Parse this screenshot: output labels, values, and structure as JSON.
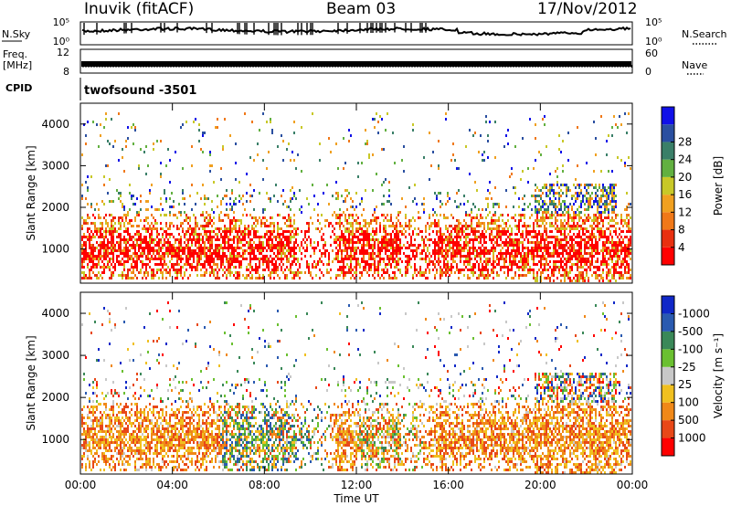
{
  "header": {
    "station": "Inuvik (fitACF)",
    "beam": "Beam 03",
    "date": "17/Nov/2012"
  },
  "chart_data": [
    {
      "type": "line",
      "name": "noise-panel",
      "left_label": "N.Sky",
      "right_label": "N.Search",
      "left_ticks": [
        "10^5",
        "10^0"
      ],
      "right_ticks": [
        "10^5",
        "10^0"
      ]
    },
    {
      "type": "line",
      "name": "freq-panel",
      "left_label_lines": [
        "Freq.",
        "[MHz]"
      ],
      "right_label": "Nave",
      "left_ticks": [
        "12",
        "8"
      ],
      "right_ticks": [
        "60",
        "0"
      ]
    },
    {
      "type": "table",
      "name": "cpid-panel",
      "label": "CPID",
      "value": "twofsound  -3501"
    },
    {
      "type": "heatmap",
      "name": "power-panel",
      "ylabel": "Slant Range [km]",
      "yticks": [
        1000,
        2000,
        3000,
        4000
      ],
      "ylim": [
        180,
        4500
      ],
      "colorbar": {
        "label": "Power [dB]",
        "ticks": [
          "4",
          "8",
          "12",
          "16",
          "20",
          "24",
          "28"
        ],
        "colors": [
          "#1010e8",
          "#2a4fa0",
          "#3a7f68",
          "#62b040",
          "#c8c828",
          "#f0a020",
          "#f07818",
          "#e83010",
          "#ff0000"
        ]
      }
    },
    {
      "type": "heatmap",
      "name": "velocity-panel",
      "ylabel": "Slant Range [km]",
      "yticks": [
        1000,
        2000,
        3000,
        4000
      ],
      "ylim": [
        180,
        4500
      ],
      "colorbar": {
        "label": "Velocity [m s⁻¹]",
        "ticks": [
          "1000",
          "500",
          "100",
          "25",
          "-25",
          "-100",
          "-500",
          "-1000"
        ],
        "colors": [
          "#1028c8",
          "#2a5ab0",
          "#3a8858",
          "#6ac030",
          "#c8c8c8",
          "#f0c020",
          "#f08818",
          "#e84818",
          "#ff0000"
        ]
      },
      "xlabel": "Time UT",
      "xticks": [
        "00:00",
        "04:00",
        "08:00",
        "12:00",
        "16:00",
        "20:00",
        "00:00"
      ]
    }
  ]
}
